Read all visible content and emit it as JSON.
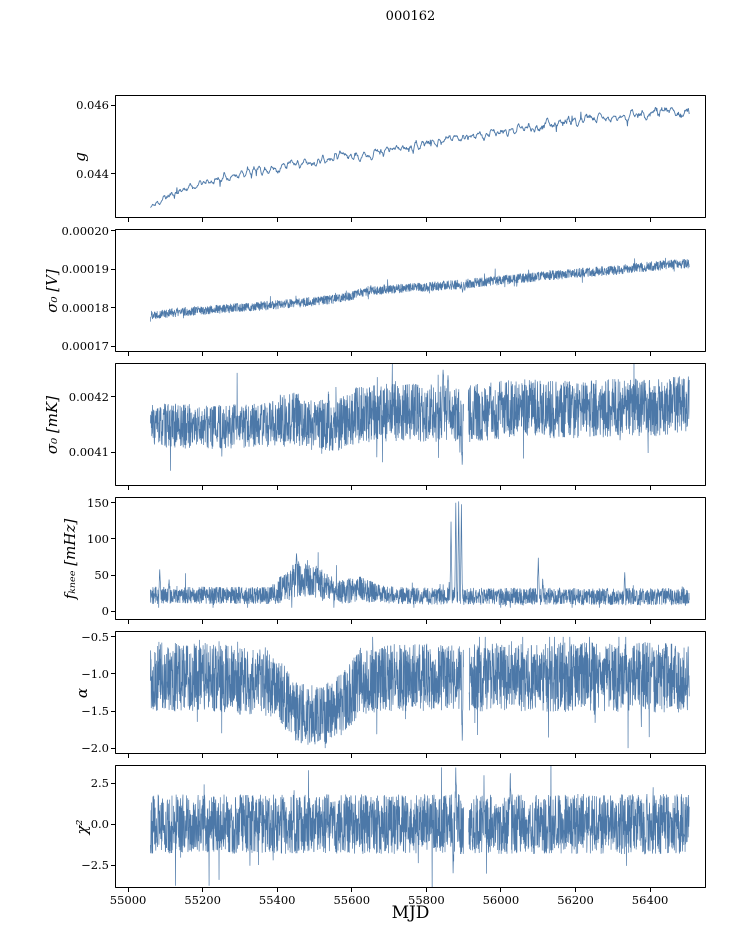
{
  "title": "000162",
  "chart_data": {
    "type": "line",
    "title": "000162",
    "xlabel": "MJD",
    "line_color": "#4c78a8",
    "axis_color": "#000000",
    "legend": "none",
    "grid": false,
    "xlim": [
      54965,
      56550
    ],
    "x_data_range": [
      55060,
      56505
    ],
    "xticks": [
      {
        "v": 55000,
        "label": "55000"
      },
      {
        "v": 55200,
        "label": "55200"
      },
      {
        "v": 55400,
        "label": "55400"
      },
      {
        "v": 55600,
        "label": "55600"
      },
      {
        "v": 55800,
        "label": "55800"
      },
      {
        "v": 56000,
        "label": "56000"
      },
      {
        "v": 56200,
        "label": "56200"
      },
      {
        "v": 56400,
        "label": "56400"
      }
    ],
    "panels": [
      {
        "ylabel": "g",
        "ylim": [
          0.0427,
          0.0463
        ],
        "yticks": [
          {
            "v": 0.044,
            "label": "0.044"
          },
          {
            "v": 0.046,
            "label": "0.046"
          }
        ],
        "seed": 11,
        "n": 1100,
        "smooth": 5,
        "lw": 0.9,
        "tail_p": 0.02,
        "tail_scale": 1.6,
        "clip": null,
        "gaps": [],
        "spikes": [],
        "trend": [
          [
            55060,
            0.043
          ],
          [
            55100,
            0.0433
          ],
          [
            55150,
            0.04355
          ],
          [
            55200,
            0.0437
          ],
          [
            55250,
            0.04385
          ],
          [
            55300,
            0.044
          ],
          [
            55350,
            0.0441
          ],
          [
            55400,
            0.04415
          ],
          [
            55440,
            0.0443
          ],
          [
            55480,
            0.0443
          ],
          [
            55520,
            0.0444
          ],
          [
            55560,
            0.0446
          ],
          [
            55600,
            0.0445
          ],
          [
            55650,
            0.0446
          ],
          [
            55700,
            0.0447
          ],
          [
            55750,
            0.0448
          ],
          [
            55800,
            0.0449
          ],
          [
            55850,
            0.045
          ],
          [
            55900,
            0.0451
          ],
          [
            55950,
            0.0451
          ],
          [
            56000,
            0.0452
          ],
          [
            56050,
            0.0453
          ],
          [
            56100,
            0.0454
          ],
          [
            56150,
            0.0455
          ],
          [
            56200,
            0.0455
          ],
          [
            56250,
            0.0456
          ],
          [
            56300,
            0.0456
          ],
          [
            56350,
            0.0457
          ],
          [
            56400,
            0.0458
          ],
          [
            56450,
            0.0458
          ],
          [
            56505,
            0.0458
          ]
        ],
        "amp": [
          [
            55060,
            0.0001
          ],
          [
            55400,
            0.00012
          ],
          [
            56000,
            0.00013
          ],
          [
            56505,
            0.00014
          ]
        ]
      },
      {
        "ylabel": "σ₀ [V]",
        "ylim": [
          0.0001685,
          0.0002005
        ],
        "yticks": [
          {
            "v": 0.00017,
            "label": "0.00017"
          },
          {
            "v": 0.00018,
            "label": "0.00018"
          },
          {
            "v": 0.00019,
            "label": "0.00019"
          },
          {
            "v": 0.0002,
            "label": "0.00020"
          }
        ],
        "seed": 22,
        "n": 2400,
        "smooth": 1,
        "lw": 0.7,
        "tail_p": 0.02,
        "tail_scale": 1.8,
        "clip": null,
        "gaps": [],
        "spikes": [
          [
            55897,
            0.000184
          ],
          [
            55903,
            0.0001845
          ]
        ],
        "trend": [
          [
            55060,
            0.0001782
          ],
          [
            55150,
            0.000179
          ],
          [
            55250,
            0.0001797
          ],
          [
            55350,
            0.0001804
          ],
          [
            55450,
            0.0001812
          ],
          [
            55550,
            0.0001822
          ],
          [
            55600,
            0.0001832
          ],
          [
            55650,
            0.0001846
          ],
          [
            55720,
            0.000185
          ],
          [
            55800,
            0.0001854
          ],
          [
            55900,
            0.0001862
          ],
          [
            56000,
            0.0001872
          ],
          [
            56100,
            0.0001881
          ],
          [
            56200,
            0.000189
          ],
          [
            56300,
            0.0001897
          ],
          [
            56400,
            0.0001908
          ],
          [
            56450,
            0.0001912
          ],
          [
            56505,
            0.0001915
          ]
        ],
        "amp": [
          [
            55060,
            1.2e-06
          ],
          [
            56505,
            1.3e-06
          ]
        ]
      },
      {
        "ylabel": "σ₀ [mK]",
        "ylim": [
          0.00404,
          0.00426
        ],
        "yticks": [
          {
            "v": 0.0041,
            "label": "0.0041"
          },
          {
            "v": 0.0042,
            "label": "0.0042"
          }
        ],
        "seed": 33,
        "n": 2400,
        "smooth": 1,
        "lw": 0.7,
        "tail_p": 0.03,
        "tail_scale": 1.5,
        "clip": null,
        "gaps": [
          [
            55900,
            55912
          ]
        ],
        "spikes": [
          [
            55896,
            0.004078
          ],
          [
            55890,
            0.0041
          ],
          [
            55845,
            0.004248
          ],
          [
            55858,
            0.004238
          ]
        ],
        "trend": [
          [
            55060,
            0.004148
          ],
          [
            55200,
            0.004146
          ],
          [
            55300,
            0.004146
          ],
          [
            55380,
            0.00415
          ],
          [
            55430,
            0.004162
          ],
          [
            55470,
            0.004155
          ],
          [
            55530,
            0.004148
          ],
          [
            55570,
            0.004152
          ],
          [
            55610,
            0.004166
          ],
          [
            55660,
            0.00417
          ],
          [
            55720,
            0.004172
          ],
          [
            55800,
            0.00417
          ],
          [
            55860,
            0.004172
          ],
          [
            55920,
            0.00417
          ],
          [
            56000,
            0.004176
          ],
          [
            56080,
            0.00418
          ],
          [
            56160,
            0.004176
          ],
          [
            56240,
            0.004178
          ],
          [
            56320,
            0.00418
          ],
          [
            56400,
            0.00418
          ],
          [
            56505,
            0.004186
          ]
        ],
        "amp": [
          [
            55060,
            4e-05
          ],
          [
            55380,
            4e-05
          ],
          [
            55420,
            5e-05
          ],
          [
            55500,
            4.5e-05
          ],
          [
            55600,
            5e-05
          ],
          [
            55700,
            5.2e-05
          ],
          [
            56505,
            5.2e-05
          ]
        ]
      },
      {
        "ylabel": "fₖₙₑₑ [mHz]",
        "ylim": [
          -12,
          158
        ],
        "yticks": [
          {
            "v": 0,
            "label": "0"
          },
          {
            "v": 50,
            "label": "50"
          },
          {
            "v": 100,
            "label": "100"
          },
          {
            "v": 150,
            "label": "150"
          }
        ],
        "seed": 44,
        "n": 2600,
        "smooth": 1,
        "lw": 0.7,
        "tail_p": 0.025,
        "tail_scale": 2.0,
        "clip": [
          5,
          200
        ],
        "gaps": [],
        "spikes": [
          [
            55085,
            58
          ],
          [
            55110,
            44
          ],
          [
            55452,
            80
          ],
          [
            55866,
            124
          ],
          [
            55879,
            150
          ],
          [
            55887,
            152
          ],
          [
            55894,
            148
          ],
          [
            56100,
            74
          ],
          [
            56112,
            45
          ],
          [
            56332,
            54
          ]
        ],
        "trend": [
          [
            55060,
            22
          ],
          [
            55380,
            22
          ],
          [
            55410,
            30
          ],
          [
            55440,
            42
          ],
          [
            55470,
            46
          ],
          [
            55500,
            42
          ],
          [
            55530,
            34
          ],
          [
            55560,
            27
          ],
          [
            55590,
            28
          ],
          [
            55620,
            32
          ],
          [
            55650,
            27
          ],
          [
            55690,
            23
          ],
          [
            55750,
            21
          ],
          [
            56505,
            20
          ]
        ],
        "amp": [
          [
            55060,
            12
          ],
          [
            55380,
            12
          ],
          [
            55420,
            22
          ],
          [
            55460,
            26
          ],
          [
            55520,
            22
          ],
          [
            55560,
            16
          ],
          [
            55600,
            18
          ],
          [
            55640,
            16
          ],
          [
            55700,
            12
          ],
          [
            56505,
            12
          ]
        ]
      },
      {
        "ylabel": "α",
        "ylim": [
          -2.08,
          -0.42
        ],
        "yticks": [
          {
            "v": -2.0,
            "label": "−2.0"
          },
          {
            "v": -1.5,
            "label": "−1.5"
          },
          {
            "v": -1.0,
            "label": "−1.0"
          },
          {
            "v": -0.5,
            "label": "−0.5"
          }
        ],
        "seed": 55,
        "n": 2600,
        "smooth": 1,
        "lw": 0.7,
        "tail_p": 0.03,
        "tail_scale": 1.5,
        "clip": [
          -2.0,
          -0.5
        ],
        "gaps": [
          [
            55900,
            55914
          ]
        ],
        "spikes": [
          [
            55896,
            -1.9
          ]
        ],
        "trend": [
          [
            55060,
            -1.04
          ],
          [
            55250,
            -1.05
          ],
          [
            55330,
            -1.12
          ],
          [
            55370,
            -1.06
          ],
          [
            55410,
            -1.25
          ],
          [
            55450,
            -1.5
          ],
          [
            55490,
            -1.58
          ],
          [
            55530,
            -1.55
          ],
          [
            55570,
            -1.42
          ],
          [
            55600,
            -1.25
          ],
          [
            55625,
            -1.08
          ],
          [
            55660,
            -1.1
          ],
          [
            55700,
            -1.05
          ],
          [
            56505,
            -1.04
          ]
        ],
        "amp": [
          [
            55060,
            0.48
          ],
          [
            55400,
            0.45
          ],
          [
            55480,
            0.4
          ],
          [
            55560,
            0.42
          ],
          [
            55620,
            0.45
          ],
          [
            56505,
            0.48
          ]
        ]
      },
      {
        "ylabel": "χ²",
        "ylim": [
          -3.9,
          3.6
        ],
        "yticks": [
          {
            "v": -2.5,
            "label": "−2.5"
          },
          {
            "v": 0,
            "label": "0.0"
          },
          {
            "v": 2.5,
            "label": "2.5"
          }
        ],
        "seed": 66,
        "n": 2600,
        "smooth": 1,
        "lw": 0.7,
        "tail_p": 0.02,
        "tail_scale": 1.5,
        "clip": null,
        "gaps": [
          [
            55901,
            55913
          ]
        ],
        "spikes": [
          [
            55879,
            3.45
          ],
          [
            55872,
            -3.0
          ],
          [
            56025,
            3.1
          ]
        ],
        "trend": [
          [
            55060,
            0
          ],
          [
            56505,
            0
          ]
        ],
        "amp": [
          [
            55060,
            1.8
          ],
          [
            56505,
            1.85
          ]
        ]
      }
    ]
  }
}
